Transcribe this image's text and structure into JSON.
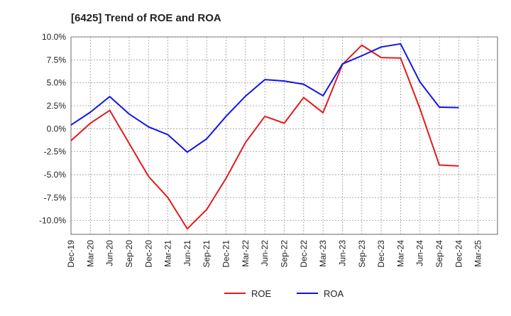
{
  "chart_data": {
    "type": "line",
    "title": "[6425]  Trend of ROE and ROA",
    "xlabel": "",
    "ylabel": "",
    "categories": [
      "Dec-19",
      "Mar-20",
      "Jun-20",
      "Sep-20",
      "Dec-20",
      "Mar-21",
      "Jun-21",
      "Sep-21",
      "Dec-21",
      "Mar-22",
      "Jun-22",
      "Sep-22",
      "Dec-22",
      "Mar-23",
      "Jun-23",
      "Sep-23",
      "Dec-23",
      "Mar-24",
      "Jun-24",
      "Sep-24",
      "Dec-24",
      "Mar-25"
    ],
    "ylim": [
      -11.5,
      10.0
    ],
    "yticks": [
      10.0,
      7.5,
      5.0,
      2.5,
      0.0,
      -2.5,
      -5.0,
      -7.5,
      -10.0
    ],
    "ytick_labels": [
      "10.0%",
      "7.5%",
      "5.0%",
      "2.5%",
      "0.0%",
      "-2.5%",
      "-5.0%",
      "-7.5%",
      "-10.0%"
    ],
    "grid": true,
    "legend_position": "bottom",
    "series": [
      {
        "name": "ROE",
        "color": "#e31a1c",
        "values": [
          -1.3,
          0.6,
          2.0,
          -1.6,
          -5.2,
          -7.5,
          -10.9,
          -8.8,
          -5.4,
          -1.5,
          1.35,
          0.6,
          3.4,
          1.75,
          7.0,
          9.1,
          7.75,
          7.7,
          2.2,
          -3.95,
          -4.05,
          null
        ]
      },
      {
        "name": "ROA",
        "color": "#1414e6",
        "values": [
          0.4,
          1.8,
          3.5,
          1.6,
          0.2,
          -0.65,
          -2.55,
          -1.1,
          1.35,
          3.55,
          5.35,
          5.2,
          4.85,
          3.6,
          7.05,
          7.95,
          8.9,
          9.25,
          5.1,
          2.35,
          2.3,
          null
        ]
      }
    ]
  }
}
